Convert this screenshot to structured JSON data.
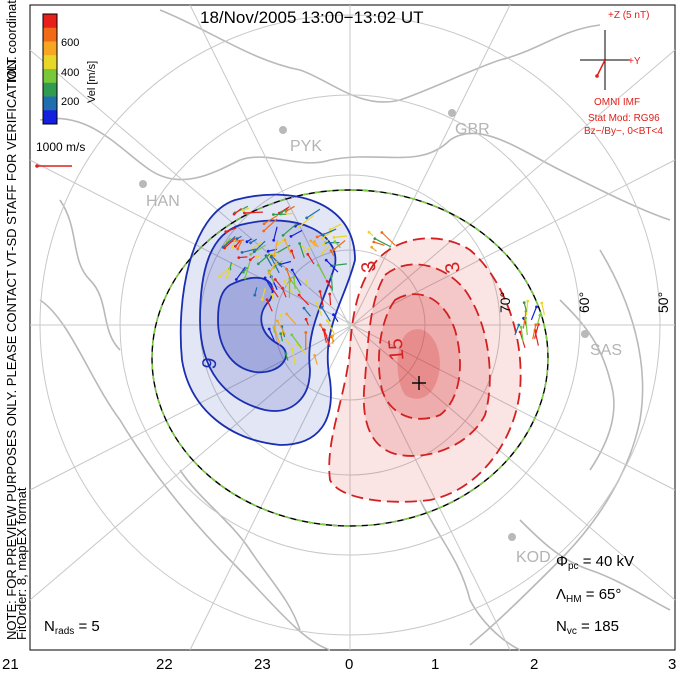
{
  "title": "18/Nov/2005  13:00−13:02  UT",
  "coord_label": "MLT coordinates",
  "preview_note": "NOTE: FOR PREVIEW PURPOSES ONLY. PLEASE CONTACT VT-SD STAFF FOR VERIFICATION.",
  "fit_note": "FitOrder: 8, mapEX format",
  "colorbar": {
    "label": "Vel [m/s]",
    "ticks": [
      "600",
      "400",
      "200"
    ],
    "colors": [
      "#e8201c",
      "#f06a18",
      "#f7a624",
      "#e9d62b",
      "#78c83a",
      "#2f9c52",
      "#1f6fb0",
      "#1420e0"
    ]
  },
  "reference_vector_label": "1000 m/s",
  "imf": {
    "z_label": "+Z (5 nT)",
    "y_label": "+Y",
    "source": "OMNI IMF",
    "stat_mod": "Stat Mod: RG96",
    "condition": "Bz−/By−, 0<BT<4"
  },
  "stations": [
    {
      "name": "PYK"
    },
    {
      "name": "GBR"
    },
    {
      "name": "HAN"
    },
    {
      "name": "SAS"
    },
    {
      "name": "KOD"
    }
  ],
  "latitude_labels": [
    "70°",
    "60°",
    "50°"
  ],
  "contour_labels": {
    "negative": [
      "9"
    ],
    "positive": [
      "3",
      "3",
      "15"
    ]
  },
  "mlt_labels": [
    "21",
    "22",
    "23",
    "0",
    "1",
    "2",
    "3"
  ],
  "stats": {
    "phi_pc": {
      "symbol": "Φ",
      "sub": "pc",
      "value": "= 40 kV"
    },
    "lambda_hm": {
      "symbol": "Λ",
      "sub": "HM",
      "value": "= 65°"
    },
    "n_vc": {
      "symbol": "N",
      "sub": "vc",
      "value": "= 185"
    },
    "n_rads": {
      "symbol": "N",
      "sub": "rads",
      "value": "= 5"
    }
  },
  "colors": {
    "negative_cell": "#1a2fb0",
    "positive_cell": "#d42020",
    "annotation_red": "#e0201a",
    "land": "#b9b9b9",
    "grid": "#c8c8c8"
  }
}
